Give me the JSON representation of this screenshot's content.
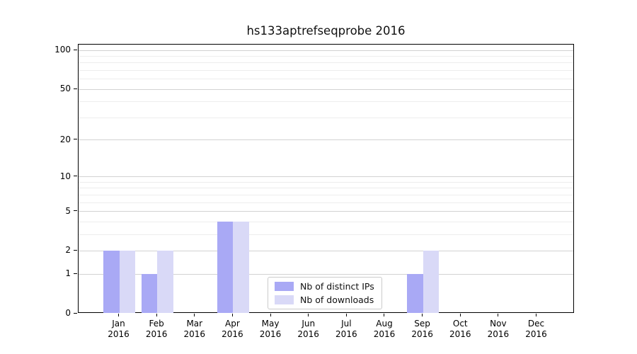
{
  "chart_data": {
    "type": "bar",
    "title": "hs133aptrefseqprobe 2016",
    "categories": [
      "Jan",
      "Feb",
      "Mar",
      "Apr",
      "May",
      "Jun",
      "Jul",
      "Aug",
      "Sep",
      "Oct",
      "Nov",
      "Dec"
    ],
    "year_label": "2016",
    "series": [
      {
        "name": "Nb of distinct IPs",
        "color": "#a9a9f5",
        "values": [
          2,
          1,
          0,
          4,
          0,
          0,
          0,
          0,
          1,
          0,
          0,
          0
        ]
      },
      {
        "name": "Nb of downloads",
        "color": "#d9d9f7",
        "values": [
          2,
          2,
          0,
          4,
          0,
          0,
          0,
          0,
          2,
          0,
          0,
          0
        ]
      }
    ],
    "scale": "log1p",
    "ylim": [
      0,
      110
    ],
    "yticks": [
      0,
      1,
      2,
      5,
      10,
      20,
      50,
      100
    ],
    "minor_gridlines": [
      3,
      4,
      6,
      7,
      8,
      9,
      30,
      40,
      60,
      70,
      80,
      90
    ],
    "grid": true,
    "legend_position": "lower-center"
  }
}
